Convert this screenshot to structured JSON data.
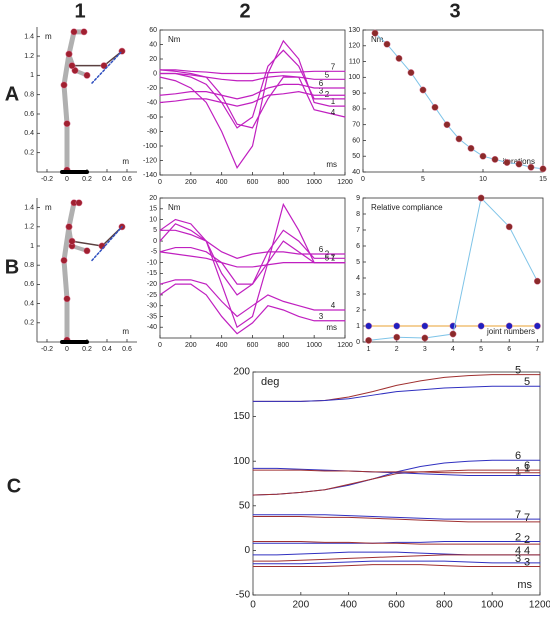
{
  "panel_labels": {
    "columns": [
      "1",
      "2",
      "3"
    ],
    "rows": [
      "A",
      "B",
      "C"
    ]
  },
  "chart_data": [
    {
      "type": "line",
      "y_label": "m",
      "x_label": "m",
      "frame": false,
      "xlim": [
        -0.3,
        0.7
      ],
      "ylim": [
        0,
        1.5
      ],
      "xticks": [
        -0.2,
        0,
        0.2,
        0.4,
        0.6
      ],
      "yticks": [
        0.2,
        0.4,
        0.6,
        0.8,
        1,
        1.2,
        1.4
      ],
      "series": [
        {
          "color": "#b0b0b0",
          "width": 5,
          "marker": true,
          "marker_color": "#a02030",
          "x": [
            0,
            0,
            -0.03,
            0.02,
            0.07,
            0.17
          ],
          "values": [
            0.02,
            0.5,
            0.9,
            1.22,
            1.45,
            1.45
          ]
        },
        {
          "color": "#b0b0b0",
          "width": 4,
          "marker": true,
          "marker_color": "#a02030",
          "x": [
            0.02,
            0.08,
            0.2
          ],
          "values": [
            1.22,
            1.05,
            1.0
          ]
        },
        {
          "color": "#5a4040",
          "width": 1.5,
          "marker": true,
          "marker_color": "#a02030",
          "x": [
            0.05,
            0.37,
            0.55
          ],
          "values": [
            1.1,
            1.1,
            1.25
          ]
        },
        {
          "color": "#3050c0",
          "width": 1.5,
          "dash": true,
          "x": [
            0.25,
            0.55
          ],
          "values": [
            0.92,
            1.25
          ]
        },
        {
          "color": "#000000",
          "width": 4,
          "x": [
            -0.05,
            0.2
          ],
          "values": [
            0,
            0
          ]
        }
      ]
    },
    {
      "type": "line",
      "y_label": "Nm",
      "x_label": "ms",
      "frame": true,
      "xlim": [
        0,
        1200
      ],
      "ylim": [
        -140,
        60
      ],
      "xticks": [
        0,
        200,
        400,
        600,
        800,
        1000,
        1200
      ],
      "yticks": [
        -140,
        -120,
        -100,
        -80,
        -60,
        -40,
        -20,
        0,
        20,
        40,
        60
      ],
      "x": [
        0,
        100,
        200,
        300,
        400,
        500,
        600,
        700,
        800,
        900,
        1000,
        1100,
        1200
      ],
      "series": [
        {
          "name": "1",
          "color": "#c020c0",
          "width": 1.2,
          "values": [
            -5,
            -10,
            -20,
            -40,
            -80,
            -130,
            -100,
            0,
            45,
            20,
            -40,
            -45,
            -45
          ]
        },
        {
          "name": "2",
          "color": "#c020c0",
          "width": 1.2,
          "values": [
            0,
            0,
            -5,
            -15,
            -40,
            -75,
            -60,
            10,
            32,
            10,
            -35,
            -35,
            -35
          ]
        },
        {
          "name": "3",
          "color": "#c020c0",
          "width": 1.2,
          "values": [
            -40,
            -38,
            -35,
            -35,
            -40,
            -45,
            -40,
            -30,
            -28,
            -25,
            -30,
            -30,
            -30
          ]
        },
        {
          "name": "4",
          "color": "#c020c0",
          "width": 1.2,
          "values": [
            5,
            3,
            0,
            -5,
            -30,
            -70,
            -75,
            -35,
            -5,
            -5,
            -50,
            -55,
            -60
          ]
        },
        {
          "name": "5",
          "color": "#c020c0",
          "width": 1.2,
          "values": [
            0,
            0,
            -2,
            -5,
            -8,
            -10,
            -10,
            -5,
            -3,
            -5,
            -8,
            -8,
            -8
          ]
        },
        {
          "name": "6",
          "color": "#c020c0",
          "width": 1.2,
          "values": [
            -30,
            -28,
            -25,
            -25,
            -30,
            -35,
            -30,
            -20,
            -15,
            -15,
            -20,
            -20,
            -20
          ]
        },
        {
          "name": "7",
          "color": "#c020c0",
          "width": 1.2,
          "values": [
            5,
            5,
            3,
            2,
            0,
            0,
            0,
            1,
            2,
            2,
            3,
            3,
            3
          ]
        }
      ]
    },
    {
      "type": "line",
      "y_label": "Nm",
      "x_label": "iterations",
      "frame": true,
      "xlim": [
        0,
        15
      ],
      "ylim": [
        40,
        130
      ],
      "xticks": [
        0,
        5,
        10,
        15
      ],
      "yticks": [
        40,
        50,
        60,
        70,
        80,
        90,
        100,
        110,
        120,
        130
      ],
      "x": [
        1,
        2,
        3,
        4,
        5,
        6,
        7,
        8,
        9,
        10,
        11,
        12,
        13,
        14,
        15
      ],
      "series": [
        {
          "color": "#7fc4e8",
          "width": 1,
          "marker": true,
          "marker_color": "#8b2a2a",
          "values": [
            128,
            121,
            112,
            103,
            92,
            81,
            70,
            61,
            55,
            50,
            48,
            46,
            45,
            43,
            42
          ]
        }
      ]
    },
    {
      "type": "line",
      "y_label": "m",
      "x_label": "m",
      "frame": false,
      "xlim": [
        -0.3,
        0.7
      ],
      "ylim": [
        0,
        1.5
      ],
      "xticks": [
        -0.2,
        0,
        0.2,
        0.4,
        0.6
      ],
      "yticks": [
        0.2,
        0.4,
        0.6,
        0.8,
        1,
        1.2,
        1.4
      ],
      "series": [
        {
          "color": "#b0b0b0",
          "width": 5,
          "marker": true,
          "marker_color": "#a02030",
          "x": [
            0,
            0,
            -0.03,
            0.02,
            0.07,
            0.12
          ],
          "values": [
            0.02,
            0.45,
            0.85,
            1.2,
            1.45,
            1.45
          ]
        },
        {
          "color": "#b0b0b0",
          "width": 4,
          "marker": true,
          "marker_color": "#a02030",
          "x": [
            0.02,
            0.05,
            0.2
          ],
          "values": [
            1.2,
            1.0,
            0.95
          ]
        },
        {
          "color": "#5a4040",
          "width": 1.5,
          "marker": true,
          "marker_color": "#a02030",
          "x": [
            0.05,
            0.35,
            0.55
          ],
          "values": [
            1.05,
            1.0,
            1.2
          ]
        },
        {
          "color": "#3050c0",
          "width": 1.5,
          "dash": true,
          "x": [
            0.25,
            0.55
          ],
          "values": [
            0.85,
            1.2
          ]
        },
        {
          "color": "#000000",
          "width": 4,
          "x": [
            -0.05,
            0.2
          ],
          "values": [
            0,
            0
          ]
        }
      ]
    },
    {
      "type": "line",
      "y_label": "Nm",
      "x_label": "ms",
      "frame": true,
      "xlim": [
        0,
        1200
      ],
      "ylim": [
        -45,
        20
      ],
      "xticks": [
        0,
        200,
        400,
        600,
        800,
        1000,
        1200
      ],
      "yticks": [
        -40,
        -35,
        -30,
        -25,
        -20,
        -15,
        -10,
        -5,
        0,
        5,
        10,
        15,
        20
      ],
      "x": [
        0,
        100,
        200,
        300,
        400,
        500,
        600,
        700,
        800,
        900,
        1000,
        1100,
        1200
      ],
      "series": [
        {
          "name": "1",
          "color": "#c020c0",
          "width": 1.2,
          "values": [
            0,
            8,
            5,
            0,
            -20,
            -40,
            -35,
            -10,
            17,
            5,
            -10,
            -10,
            -10
          ]
        },
        {
          "name": "2",
          "color": "#c020c0",
          "width": 1.2,
          "values": [
            5,
            10,
            8,
            0,
            -15,
            -25,
            -20,
            -5,
            5,
            0,
            -8,
            -8,
            -8
          ]
        },
        {
          "name": "3",
          "color": "#c020c0",
          "width": 1.2,
          "values": [
            -25,
            -20,
            -20,
            -25,
            -35,
            -43,
            -38,
            -30,
            -32,
            -35,
            -37,
            -37,
            -37
          ]
        },
        {
          "name": "4",
          "color": "#c020c0",
          "width": 1.2,
          "values": [
            -20,
            -18,
            -18,
            -20,
            -28,
            -35,
            -30,
            -25,
            -28,
            -30,
            -32,
            -32,
            -32
          ]
        },
        {
          "name": "5",
          "color": "#c020c0",
          "width": 1.2,
          "values": [
            -5,
            -3,
            -3,
            -5,
            -10,
            -20,
            -20,
            -10,
            0,
            -5,
            -10,
            -10,
            -10
          ]
        },
        {
          "name": "6",
          "color": "#c020c0",
          "width": 1.2,
          "values": [
            5,
            5,
            3,
            0,
            -5,
            -8,
            -6,
            -5,
            -5,
            -6,
            -6,
            -6,
            -6
          ]
        },
        {
          "name": "7",
          "color": "#c020c0",
          "width": 1.2,
          "values": [
            -5,
            -6,
            -7,
            -8,
            -10,
            -12,
            -12,
            -11,
            -10,
            -10,
            -10,
            -10,
            -10
          ]
        }
      ]
    },
    {
      "type": "line",
      "y_label": "Relative compliance",
      "x_label": "joint numbers",
      "frame": true,
      "xlim": [
        0.8,
        7.2
      ],
      "ylim": [
        0,
        9
      ],
      "xticks": [
        1,
        2,
        3,
        4,
        5,
        6,
        7
      ],
      "yticks": [
        0,
        1,
        2,
        3,
        4,
        5,
        6,
        7,
        8,
        9
      ],
      "x": [
        1,
        2,
        3,
        4,
        5,
        6,
        7
      ],
      "series": [
        {
          "color": "#e8a030",
          "width": 1,
          "marker": true,
          "marker_color": "#2020c0",
          "values": [
            1,
            1,
            1,
            1,
            1,
            1,
            1
          ]
        },
        {
          "color": "#7fc4e8",
          "width": 1,
          "marker": true,
          "marker_color": "#8b2a2a",
          "values": [
            0.1,
            0.3,
            0.25,
            0.5,
            9,
            7.2,
            3.8
          ]
        }
      ]
    },
    {
      "type": "line",
      "y_label": "deg",
      "x_label": "ms",
      "frame": true,
      "xlim": [
        0,
        1200
      ],
      "ylim": [
        -50,
        200
      ],
      "xticks": [
        0,
        200,
        400,
        600,
        800,
        1000,
        1200
      ],
      "yticks": [
        -50,
        0,
        50,
        100,
        150,
        200
      ],
      "x": [
        0,
        100,
        200,
        300,
        400,
        500,
        600,
        700,
        800,
        900,
        1000,
        1100,
        1200
      ],
      "series": [
        {
          "name": "5",
          "color": "#a03030",
          "width": 1,
          "values": [
            167,
            167,
            167,
            168,
            172,
            178,
            185,
            190,
            194,
            196,
            197,
            197,
            197
          ]
        },
        {
          "name": "5",
          "color": "#3030c0",
          "width": 1,
          "values": [
            167,
            167,
            167,
            168,
            170,
            174,
            178,
            180,
            182,
            183,
            184,
            184,
            184
          ]
        },
        {
          "name": "6",
          "color": "#3030c0",
          "width": 1,
          "values": [
            62,
            63,
            65,
            68,
            73,
            80,
            88,
            94,
            98,
            100,
            101,
            101,
            101
          ]
        },
        {
          "name": "6",
          "color": "#a03030",
          "width": 1,
          "values": [
            62,
            63,
            65,
            68,
            74,
            80,
            86,
            88,
            89,
            90,
            90,
            90,
            90
          ]
        },
        {
          "name": "1",
          "color": "#3030c0",
          "width": 1,
          "values": [
            92,
            92,
            91,
            90,
            89,
            88,
            87,
            86,
            85,
            84,
            84,
            84,
            84
          ]
        },
        {
          "name": "1",
          "color": "#a03030",
          "width": 1,
          "values": [
            90,
            90,
            90,
            89,
            89,
            88,
            88,
            88,
            87,
            87,
            87,
            87,
            87
          ]
        },
        {
          "name": "7",
          "color": "#3030c0",
          "width": 1,
          "values": [
            40,
            40,
            40,
            40,
            39,
            38,
            37,
            36,
            35,
            35,
            35,
            35,
            35
          ]
        },
        {
          "name": "7",
          "color": "#a03030",
          "width": 1,
          "values": [
            38,
            38,
            38,
            37,
            37,
            36,
            35,
            34,
            33,
            32,
            32,
            32,
            32
          ]
        },
        {
          "name": "2",
          "color": "#3030c0",
          "width": 1,
          "values": [
            8,
            8,
            8,
            8,
            8,
            8,
            9,
            9,
            10,
            10,
            10,
            10,
            10
          ]
        },
        {
          "name": "2",
          "color": "#a03030",
          "width": 1,
          "values": [
            10,
            10,
            10,
            9,
            9,
            8,
            8,
            7,
            7,
            7,
            7,
            7,
            7
          ]
        },
        {
          "name": "4",
          "color": "#3030c0",
          "width": 1,
          "values": [
            -5,
            -5,
            -4,
            -3,
            -2,
            -2,
            -2,
            -3,
            -4,
            -5,
            -5,
            -5,
            -5
          ]
        },
        {
          "name": "4",
          "color": "#a03030",
          "width": 1,
          "values": [
            -12,
            -12,
            -11,
            -10,
            -9,
            -8,
            -7,
            -6,
            -5,
            -5,
            -5,
            -5,
            -5
          ]
        },
        {
          "name": "3",
          "color": "#3030c0",
          "width": 1,
          "values": [
            -15,
            -15,
            -15,
            -14,
            -13,
            -12,
            -12,
            -12,
            -12,
            -13,
            -14,
            -14,
            -14
          ]
        },
        {
          "name": "3",
          "color": "#a03030",
          "width": 1,
          "values": [
            -18,
            -18,
            -18,
            -18,
            -17,
            -16,
            -16,
            -16,
            -17,
            -18,
            -18,
            -18,
            -18
          ]
        }
      ]
    }
  ]
}
